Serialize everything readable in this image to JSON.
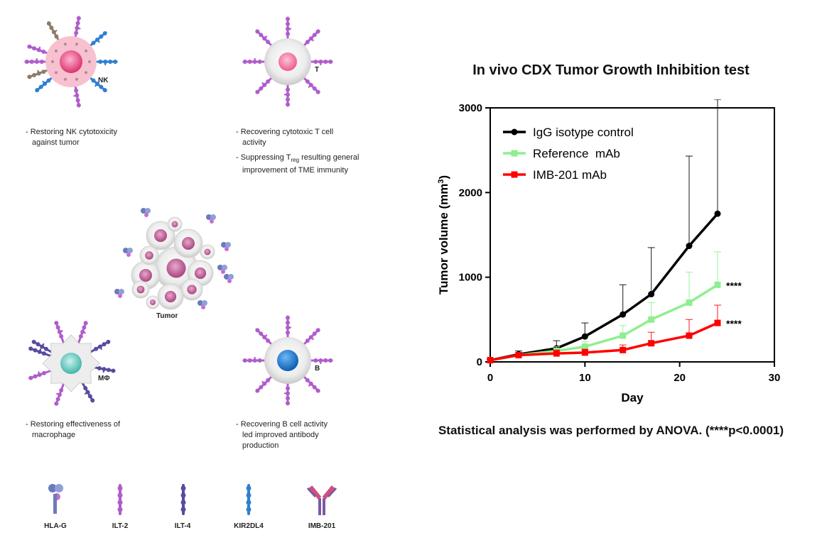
{
  "figure": {
    "cells": {
      "nk": "NK",
      "t": "T",
      "tumor": "Tumor",
      "macrophage": "MΦ",
      "b": "B"
    },
    "descriptions": {
      "nk": [
        "- Restoring NK cytotoxicity",
        "against tumor"
      ],
      "t1": [
        "- Recovering cytotoxic T cell",
        "activity"
      ],
      "t2_prefix": "- Suppressing T",
      "t2_sub": "reg",
      "t2_suffix": " resulting general",
      "t2_line2": "improvement of TME immunity",
      "macrophage": [
        "- Restoring effectiveness of",
        "macrophage"
      ],
      "b": [
        "- Recovering B cell activity",
        "led improved antibody",
        "production"
      ]
    },
    "legend": [
      "HLA-G",
      "ILT-2",
      "ILT-4",
      "KIR2DL4",
      "IMB-201"
    ],
    "colors": {
      "ilt2": "#b05ccc",
      "ilt4": "#5b4aa0",
      "kir2dl4": "#2f7fd1",
      "hlag": "#6a7bb8",
      "nk_halo": "#f7c1cf",
      "nk_core": "#e8457d",
      "t_core": "#f06292",
      "macro_core": "#5fc9bf",
      "b_core": "#1976d2",
      "tumor_core": "#b9558f"
    }
  },
  "chart_data": {
    "type": "line",
    "title": "In vivo CDX Tumor Growth Inhibition test",
    "xlabel": "Day",
    "ylabel": "Tumor volume (mm3)",
    "xlim": [
      0,
      30
    ],
    "ylim": [
      0,
      3000
    ],
    "xticks": [
      0,
      10,
      20,
      30
    ],
    "yticks": [
      0,
      1000,
      2000,
      3000
    ],
    "legend_position": "top-left",
    "series": [
      {
        "name": "IgG isotype control",
        "color": "#000000",
        "marker": "circle",
        "x": [
          0,
          3,
          7,
          10,
          14,
          17,
          21,
          24
        ],
        "y": [
          20,
          90,
          160,
          300,
          560,
          800,
          1370,
          1750
        ],
        "err": [
          10,
          40,
          90,
          160,
          350,
          550,
          1060,
          1350
        ]
      },
      {
        "name": "Reference  mAb",
        "color": "#90ee90",
        "marker": "square",
        "x": [
          0,
          3,
          7,
          10,
          14,
          17,
          21,
          24
        ],
        "y": [
          20,
          80,
          130,
          180,
          310,
          500,
          700,
          910
        ],
        "err": [
          10,
          30,
          50,
          60,
          120,
          200,
          360,
          390
        ],
        "annotation": "****"
      },
      {
        "name": "IMB-201 mAb",
        "color": "#ff0000",
        "marker": "square",
        "x": [
          0,
          3,
          7,
          10,
          14,
          17,
          21,
          24
        ],
        "y": [
          20,
          80,
          100,
          110,
          140,
          220,
          310,
          460
        ],
        "err": [
          10,
          30,
          40,
          40,
          60,
          130,
          190,
          210
        ],
        "annotation": "****"
      }
    ],
    "footnote": "Statistical analysis was performed by ANOVA. (****p<0.0001)"
  }
}
